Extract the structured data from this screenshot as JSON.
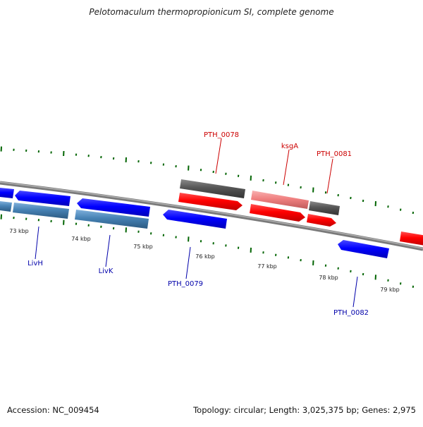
{
  "title": "Pelotomaculum thermopropionicum SI, complete genome",
  "footer": {
    "accession": "Accession: NC_009454",
    "summary": "Topology: circular; Length: 3,025,375 bp; Genes: 2,975"
  },
  "ticks": [
    {
      "label": "73 kbp",
      "kbp": 73
    },
    {
      "label": "74 kbp",
      "kbp": 74
    },
    {
      "label": "75 kbp",
      "kbp": 75
    },
    {
      "label": "76 kbp",
      "kbp": 76
    },
    {
      "label": "77 kbp",
      "kbp": 77
    },
    {
      "label": "78 kbp",
      "kbp": 78
    },
    {
      "label": "79 kbp",
      "kbp": 79
    }
  ],
  "gene_labels": [
    {
      "name": "PTH_0078",
      "color": "#cc0000"
    },
    {
      "name": "ksgA",
      "color": "#cc0000"
    },
    {
      "name": "PTH_0081",
      "color": "#cc0000"
    },
    {
      "name": "LivH",
      "color": "#0000aa"
    },
    {
      "name": "LivK",
      "color": "#0000aa"
    },
    {
      "name": "PTH_0079",
      "color": "#0000aa"
    },
    {
      "name": "PTH_0082",
      "color": "#0000aa"
    }
  ],
  "colors": {
    "forward_cds": "#ff0000",
    "forward_cds_light": "#f08080",
    "reverse_cds": "#0000ff",
    "reverse_cds_steel": "#4682b4",
    "gray_feature": "#555555",
    "backbone": "#888888",
    "tick": "#006400"
  }
}
